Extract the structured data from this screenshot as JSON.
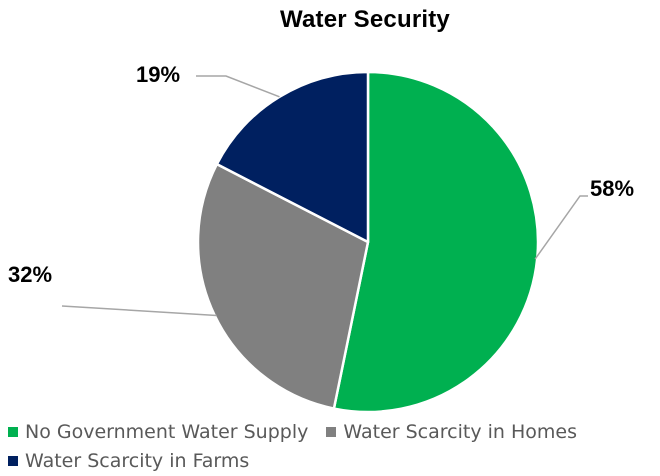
{
  "chart_data": {
    "type": "pie",
    "title": "Water Security",
    "slices": [
      {
        "label": "No Government Water Supply",
        "value": 58,
        "display": "58%",
        "color": "#00b050"
      },
      {
        "label": "Water Scarcity in Homes",
        "value": 32,
        "display": "32%",
        "color": "#808080"
      },
      {
        "label": "Water Scarcity in Farms",
        "value": 19,
        "display": "19%",
        "color": "#002060"
      }
    ],
    "legend_position": "bottom",
    "data_labels": "outside-with-leader-lines"
  }
}
